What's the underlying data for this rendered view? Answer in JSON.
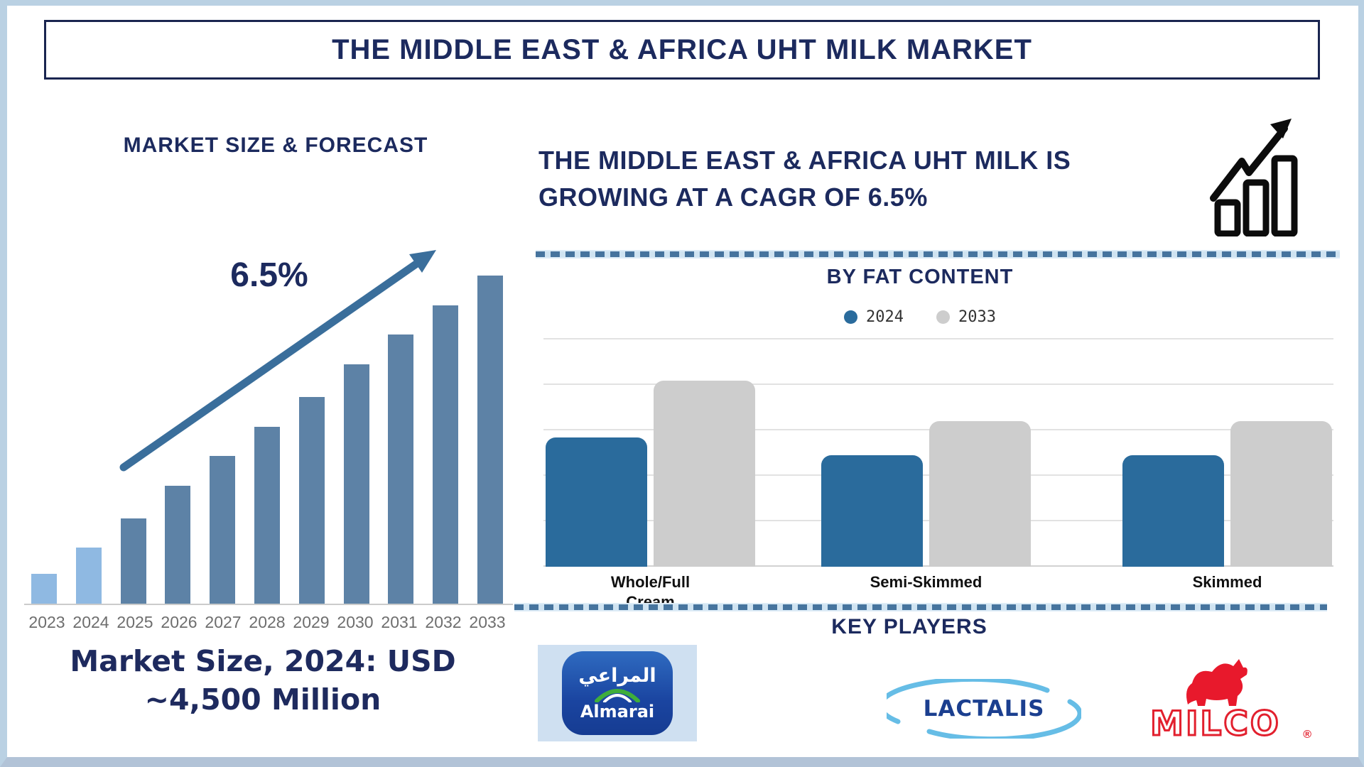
{
  "page": {
    "title": "THE MIDDLE EAST & AFRICA UHT MILK MARKET"
  },
  "left": {
    "note_line1": "Market Size, 2024: USD",
    "note_line2": "~4,500 Million"
  },
  "right": {
    "heading_line1": "THE MIDDLE EAST & AFRICA UHT MILK IS",
    "heading_line2": "GROWING AT A CAGR OF 6.5%",
    "growth_icon": "growth-chart-icon"
  },
  "key_players": {
    "heading": "KEY PLAYERS",
    "almarai": {
      "arabic": "المراعي",
      "name": "Almarai"
    },
    "lactalis": {
      "name": "LACTALIS"
    },
    "milco": {
      "name": "MILCO",
      "reg_mark": "®"
    }
  },
  "colors": {
    "navy_text": "#1c2a5e",
    "light_blue_bar": "#8fb9e2",
    "slate_blue_bar": "#5d82a6",
    "arrow_blue": "#3a6e9b",
    "fat_2024_blue": "#2a6b9c",
    "fat_2033_gray": "#cdcdcd",
    "year_label_gray": "#6e6e6e",
    "page_border_blue": "#bad1e3"
  },
  "chart_data": [
    {
      "id": "market-size-forecast",
      "type": "bar",
      "title": "MARKET SIZE & FORECAST",
      "categories": [
        "2023",
        "2024",
        "2025",
        "2026",
        "2027",
        "2028",
        "2029",
        "2030",
        "2031",
        "2032",
        "2033"
      ],
      "values_relative_pct": [
        9,
        17,
        26,
        36,
        45,
        54,
        63,
        73,
        82,
        91,
        100
      ],
      "bar_colors": [
        "#8fb9e2",
        "#8fb9e2",
        "#5d82a6",
        "#5d82a6",
        "#5d82a6",
        "#5d82a6",
        "#5d82a6",
        "#5d82a6",
        "#5d82a6",
        "#5d82a6",
        "#5d82a6"
      ],
      "annotation": "6.5%",
      "note": "Market Size, 2024: USD ~4,500 Million",
      "xlabel": "",
      "ylabel": "",
      "axis_numeric_labels_shown": false,
      "grid": false,
      "value_basis": "bar heights estimated as % of tallest (2033) bar; 2024 bar corresponds to ~USD 4,500 Million"
    },
    {
      "id": "by-fat-content",
      "type": "bar",
      "title": "BY FAT CONTENT",
      "categories": [
        "Whole/Full Cream",
        "Semi-Skimmed",
        "Skimmed"
      ],
      "series": [
        {
          "name": "2024",
          "color": "#2a6b9c",
          "values_relative_pct": [
            57,
            49,
            49
          ]
        },
        {
          "name": "2033",
          "color": "#cdcdcd",
          "values_relative_pct": [
            82,
            64,
            64
          ]
        }
      ],
      "legend_position": "top",
      "grid": true,
      "xlabel": "",
      "ylabel": "",
      "axis_numeric_labels_shown": false,
      "value_basis": "bar heights estimated as % of plot height; no numeric axis shown"
    }
  ]
}
